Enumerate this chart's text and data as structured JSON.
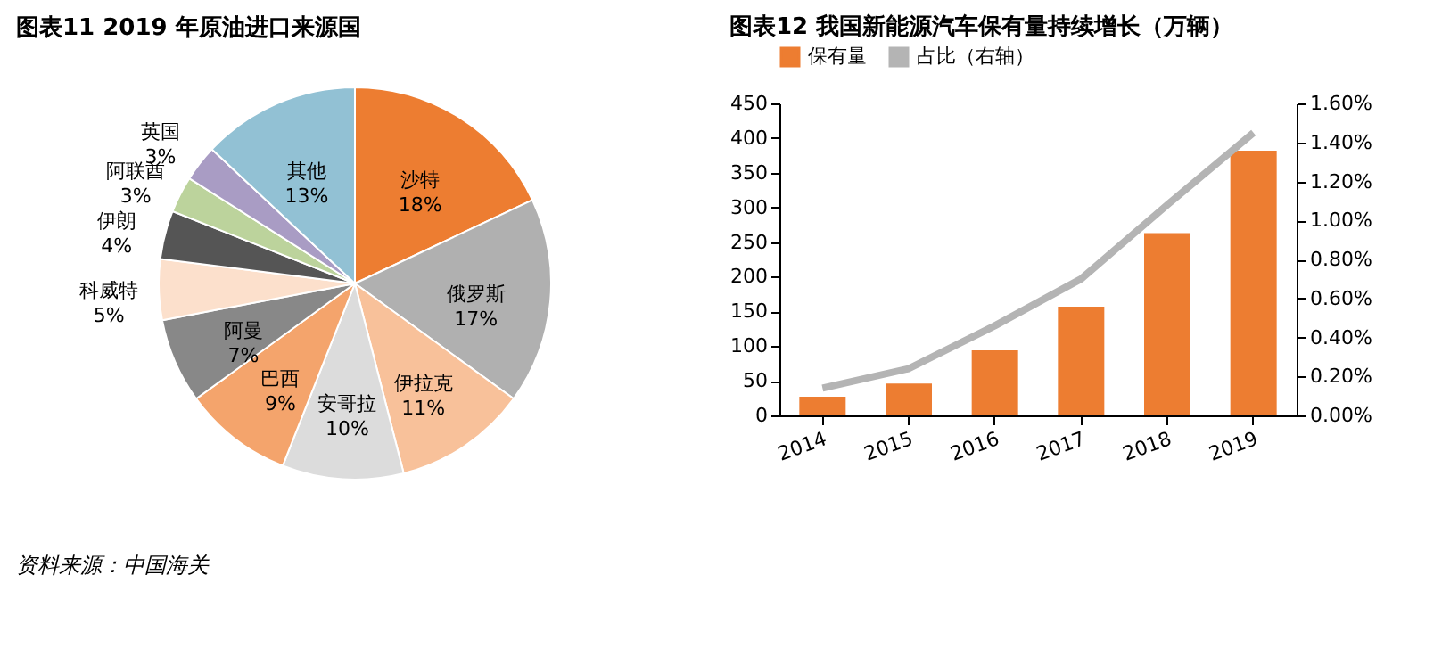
{
  "chart_data": [
    {
      "type": "pie",
      "title": "图表11    2019 年原油进口来源国",
      "categories": [
        "沙特",
        "俄罗斯",
        "伊拉克",
        "安哥拉",
        "巴西",
        "阿曼",
        "科威特",
        "伊朗",
        "阿联酋",
        "英国",
        "其他"
      ],
      "values": [
        18,
        17,
        11,
        10,
        9,
        7,
        5,
        4,
        3,
        3,
        13
      ],
      "colors": [
        "#ed7d31",
        "#b0b0b0",
        "#f8c19a",
        "#dcdcdc",
        "#f4a46c",
        "#888888",
        "#fce0cc",
        "#555555",
        "#bcd39c",
        "#a99cc4",
        "#92c1d4"
      ],
      "value_labels": [
        "18%",
        "17%",
        "11%",
        "10%",
        "9%",
        "7%",
        "5%",
        "4%",
        "3%",
        "3%",
        "13%"
      ],
      "annotations": [
        "资料来源：中国海关"
      ]
    },
    {
      "type": "bar",
      "title": "图表12    我国新能源汽车保有量持续增长（万辆）",
      "categories": [
        "2014",
        "2015",
        "2016",
        "2017",
        "2018",
        "2019"
      ],
      "series": [
        {
          "name": "保有量",
          "type": "bar",
          "color": "#ed7d31",
          "values": [
            27,
            46,
            94,
            157,
            263,
            382
          ]
        },
        {
          "name": "占比（右轴）",
          "type": "line",
          "axis": "y2",
          "color": "#b4b4b4",
          "values": [
            0.14,
            0.24,
            0.46,
            0.7,
            1.08,
            1.45
          ]
        }
      ],
      "ylim": [
        0,
        450
      ],
      "yticks": [
        0,
        50,
        100,
        150,
        200,
        250,
        300,
        350,
        400,
        450
      ],
      "y2lim": [
        0,
        1.6
      ],
      "y2ticks": [
        {
          "value": 0,
          "label": "0.00%"
        },
        {
          "value": 0.2,
          "label": "0.20%"
        },
        {
          "value": 0.4,
          "label": "0.40%"
        },
        {
          "value": 0.6,
          "label": "0.60%"
        },
        {
          "value": 0.8,
          "label": "0.80%"
        },
        {
          "value": 1,
          "label": "1.00%"
        },
        {
          "value": 1.2,
          "label": "1.20%"
        },
        {
          "value": 1.4,
          "label": "1.40%"
        },
        {
          "value": 1.6,
          "label": "1.60%"
        }
      ],
      "legend": "top"
    }
  ]
}
